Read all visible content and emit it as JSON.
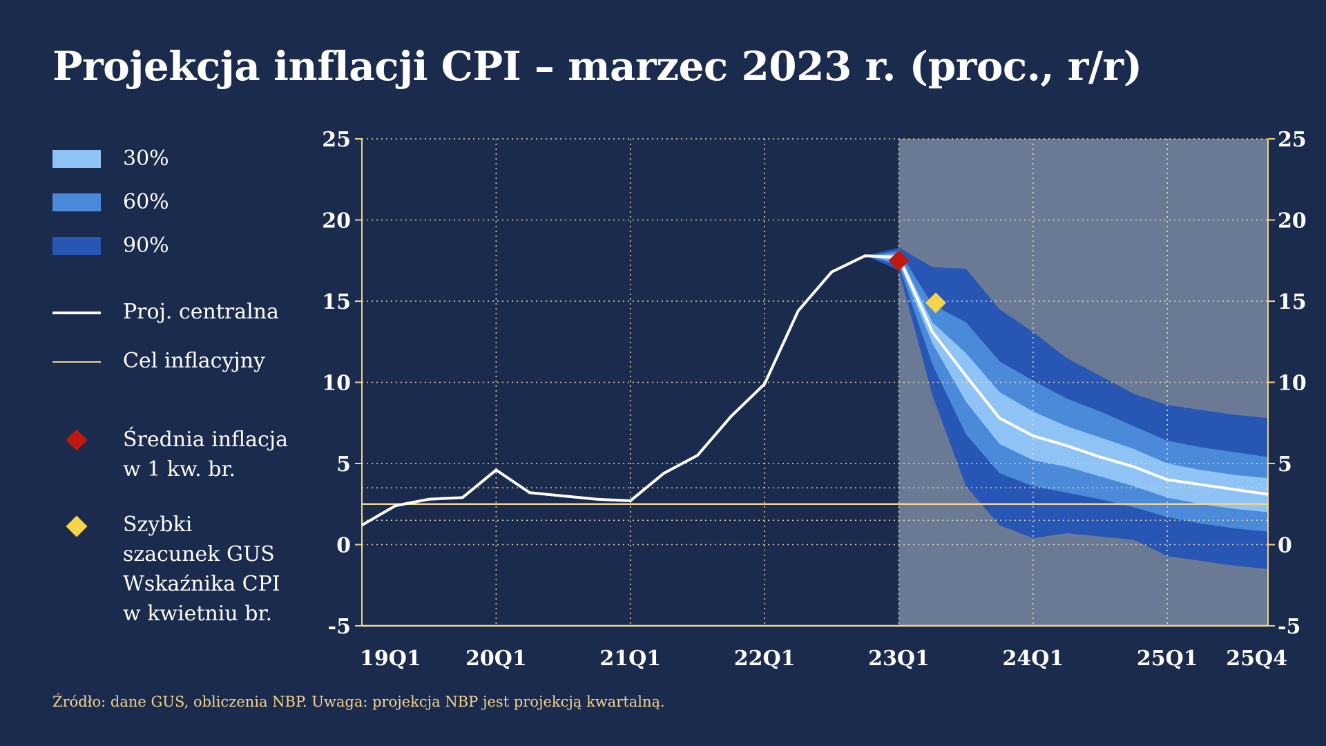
{
  "title": "Projekcja inflacji CPI – marzec 2023 r. (proc., r/r)",
  "source": "Źródło: dane GUS, obliczenia NBP.  Uwaga: projekcja NBP jest projekcją kwartalną.",
  "colors": {
    "background": "#1b2b4d",
    "projection_area": "#6b7a94",
    "band30": "#8fc3f5",
    "band60": "#4a8ad8",
    "band90": "#2756b5",
    "central": "#ffffff",
    "target": "#f4d38e",
    "avg_q1": "#c0190f",
    "flash": "#f5d34a"
  },
  "legend": {
    "band30": "30%",
    "band60": "60%",
    "band90": "90%",
    "central": "Proj. centralna",
    "target": "Cel inflacyjny",
    "avg_q1_lines": [
      "Średnia inflacja",
      "w 1 kw. br."
    ],
    "flash_lines": [
      "Szybki",
      "szacunek GUS",
      "Wskaźnika CPI",
      "w kwietniu br."
    ]
  },
  "chart_data": {
    "type": "area",
    "y_ticks": [
      25,
      20,
      15,
      10,
      5,
      0,
      -5
    ],
    "ylim": [
      -5,
      25
    ],
    "x_tick_labels": [
      "19Q1",
      "20Q1",
      "21Q1",
      "22Q1",
      "23Q1",
      "24Q1",
      "25Q1",
      "25Q4"
    ],
    "x_tick_positions": [
      0,
      4,
      8,
      12,
      16,
      20,
      24,
      27
    ],
    "xlim": [
      0,
      27
    ],
    "projection_start": 16,
    "grid": true,
    "target": 2.5,
    "target_band": [
      1.5,
      3.5
    ],
    "central": {
      "name": "Proj. centralna",
      "x": [
        0,
        1,
        2,
        3,
        4,
        5,
        6,
        7,
        8,
        9,
        10,
        11,
        12,
        13,
        14,
        15,
        16,
        17,
        18,
        19,
        20,
        21,
        22,
        23,
        24,
        25,
        26,
        27
      ],
      "values": [
        1.2,
        2.4,
        2.8,
        2.9,
        4.6,
        3.2,
        3.0,
        2.8,
        2.7,
        4.4,
        5.5,
        7.9,
        9.9,
        14.4,
        16.8,
        17.8,
        17.7,
        13.1,
        10.4,
        7.8,
        6.7,
        6.1,
        5.4,
        4.8,
        4.0,
        3.7,
        3.4,
        3.1
      ]
    },
    "bands": {
      "x": [
        15,
        16,
        17,
        18,
        19,
        20,
        21,
        22,
        23,
        24,
        25,
        26,
        27
      ],
      "band90_upper": [
        17.8,
        18.3,
        17.1,
        17.0,
        14.5,
        13.1,
        11.5,
        10.4,
        9.3,
        8.6,
        8.3,
        8.0,
        7.8
      ],
      "band60_upper": [
        17.8,
        18.1,
        14.8,
        13.7,
        11.3,
        10.1,
        9.0,
        8.2,
        7.3,
        6.4,
        6.0,
        5.7,
        5.4
      ],
      "band30_upper": [
        17.8,
        17.9,
        13.7,
        11.8,
        9.4,
        8.2,
        7.3,
        6.6,
        5.9,
        5.0,
        4.6,
        4.3,
        4.1
      ],
      "band30_lower": [
        17.8,
        17.4,
        12.4,
        8.8,
        6.2,
        5.2,
        4.8,
        4.2,
        3.6,
        2.9,
        2.5,
        2.2,
        2.0
      ],
      "band60_lower": [
        17.8,
        17.2,
        11.1,
        6.8,
        4.4,
        3.6,
        3.2,
        2.8,
        2.3,
        1.7,
        1.3,
        1.0,
        0.8
      ],
      "band90_lower": [
        17.8,
        16.9,
        9.2,
        3.6,
        1.2,
        0.4,
        0.7,
        0.5,
        0.3,
        -0.7,
        -1.0,
        -1.3,
        -1.5
      ]
    },
    "points": {
      "avg_q1": {
        "x": 16,
        "y": 17.5
      },
      "flash": {
        "x": 17.1,
        "y": 14.9
      }
    }
  }
}
